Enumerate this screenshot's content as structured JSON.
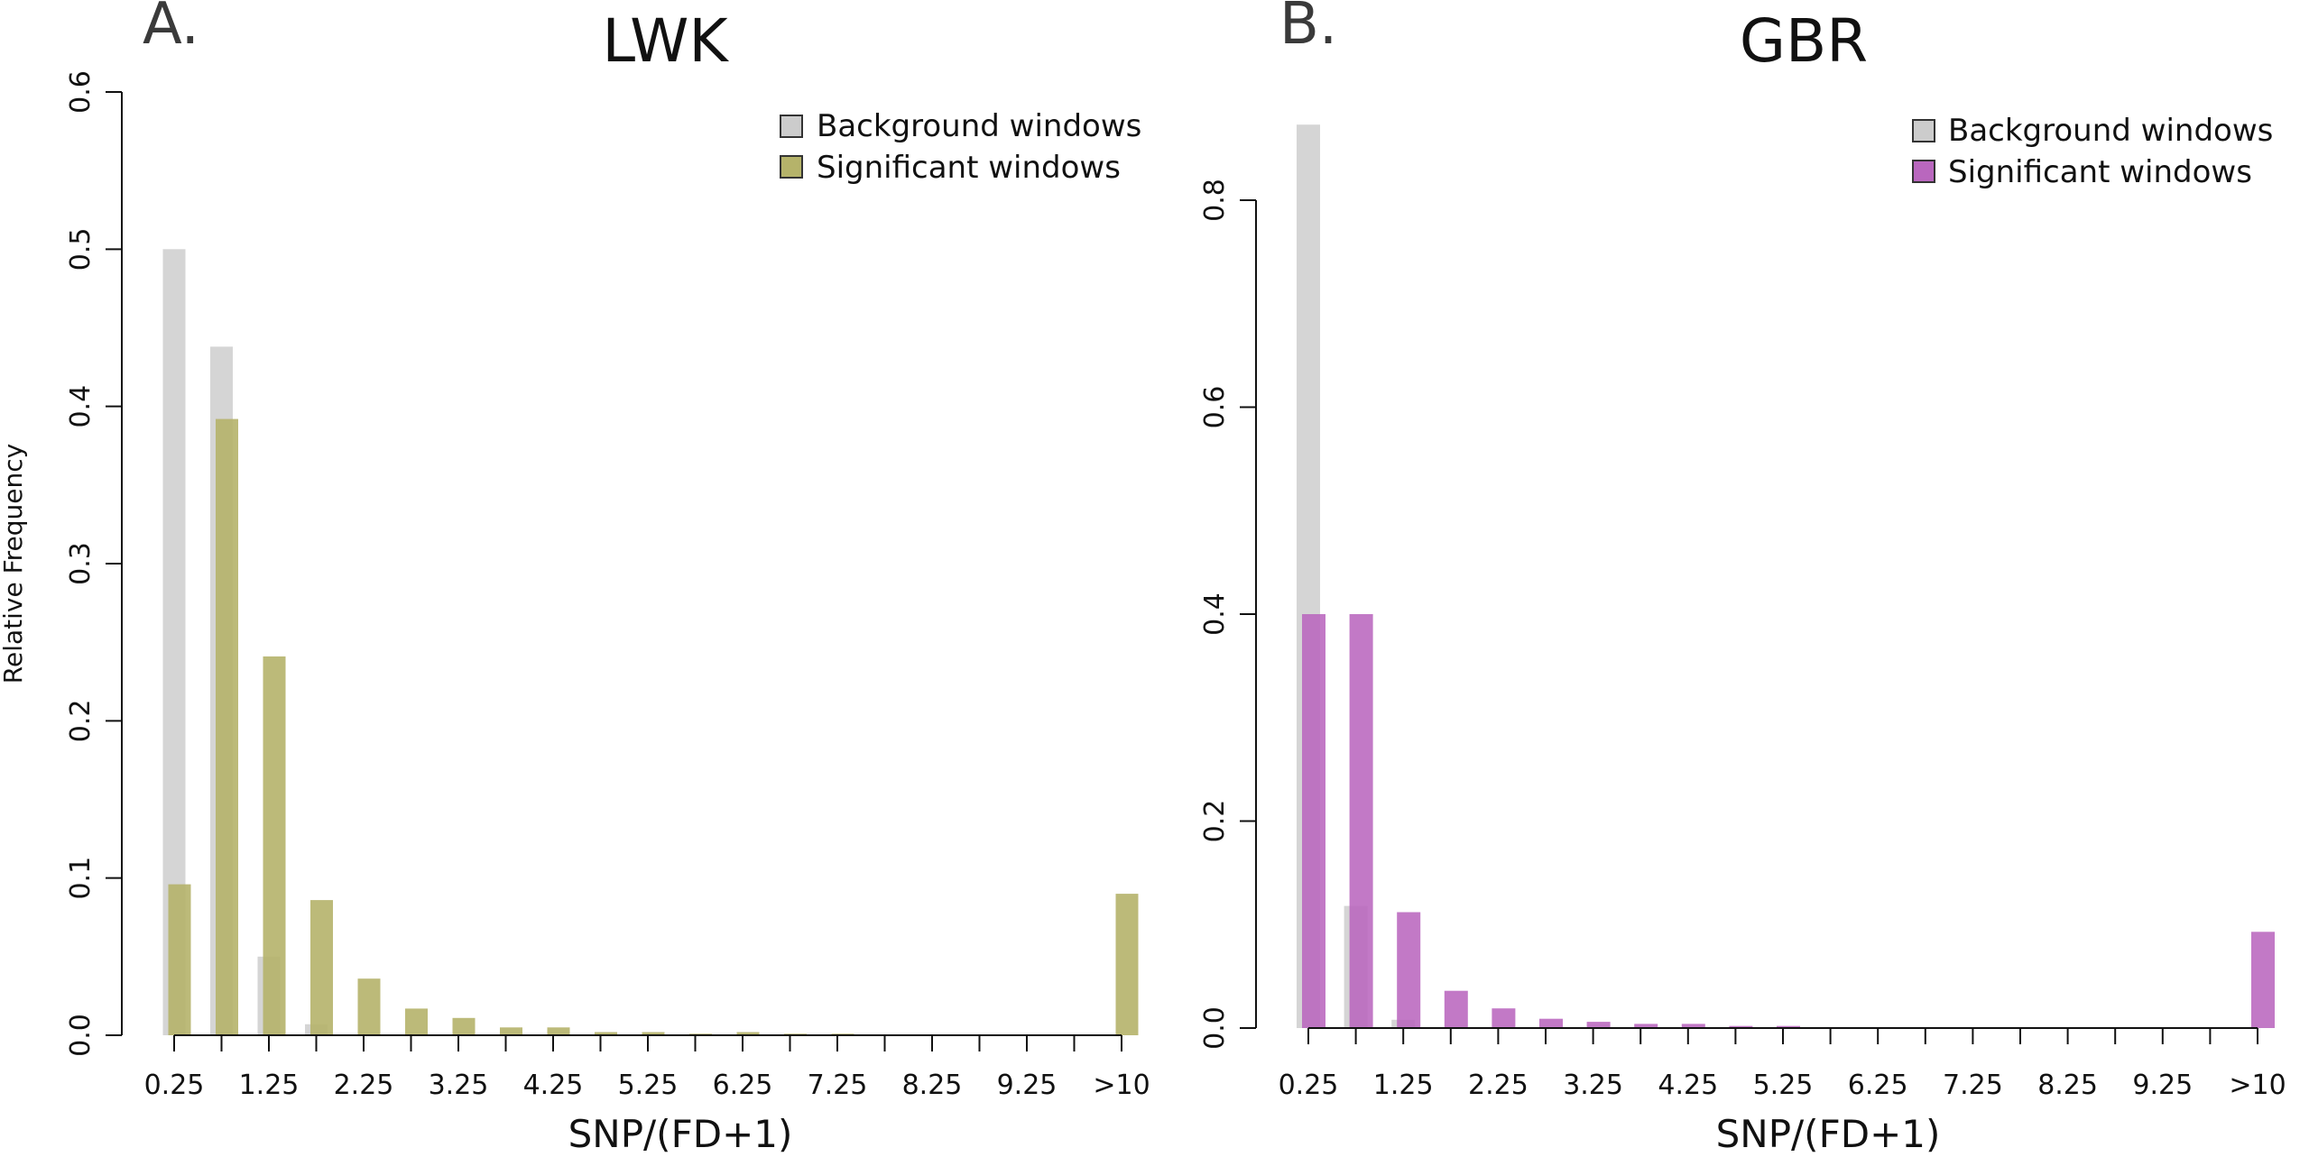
{
  "figure": {
    "shared_ylabel": "Relative Frequency"
  },
  "chart_data": [
    {
      "type": "bar",
      "panel_label": "A.",
      "title": "LWK",
      "xlabel": "SNP/(FD+1)",
      "ylabel": "Relative Frequency",
      "ylim": [
        0,
        0.6
      ],
      "yticks": [
        "0.0",
        "0.1",
        "0.2",
        "0.3",
        "0.4",
        "0.5",
        "0.6"
      ],
      "tick_labels": [
        "0.25",
        "1.25",
        "2.25",
        "3.25",
        "4.25",
        "5.25",
        "6.25",
        "7.25",
        "8.25",
        "9.25",
        ">10"
      ],
      "legend_position": "top-right",
      "series": [
        {
          "name": "Background windows",
          "color": "#cccccc",
          "values": [
            0.5,
            0.438,
            0.05,
            0.007,
            0,
            0,
            0,
            0,
            0,
            0,
            0,
            0,
            0,
            0,
            0,
            0,
            0,
            0,
            0,
            0,
            0
          ]
        },
        {
          "name": "Significant windows",
          "color": "#b5b36a",
          "values": [
            0.096,
            0.392,
            0.241,
            0.086,
            0.036,
            0.017,
            0.011,
            0.005,
            0.005,
            0.002,
            0.002,
            0.001,
            0.002,
            0.001,
            0.001,
            0,
            0,
            0,
            0,
            0,
            0.09
          ]
        }
      ]
    },
    {
      "type": "bar",
      "panel_label": "B.",
      "title": "GBR",
      "xlabel": "SNP/(FD+1)",
      "ylim": [
        0,
        0.9
      ],
      "yticks": [
        "0.0",
        "0.2",
        "0.4",
        "0.6",
        "0.8"
      ],
      "tick_labels": [
        "0.25",
        "1.25",
        "2.25",
        "3.25",
        "4.25",
        "5.25",
        "6.25",
        "7.25",
        "8.25",
        "9.25",
        ">10"
      ],
      "legend_position": "top-right",
      "series": [
        {
          "name": "Background windows",
          "color": "#cccccc",
          "values": [
            0.873,
            0.118,
            0.008,
            0,
            0,
            0,
            0,
            0,
            0,
            0,
            0,
            0,
            0,
            0,
            0,
            0,
            0,
            0,
            0,
            0,
            0
          ]
        },
        {
          "name": "Significant windows",
          "color": "#b967be",
          "values": [
            0.4,
            0.4,
            0.112,
            0.036,
            0.019,
            0.009,
            0.006,
            0.004,
            0.004,
            0.002,
            0.002,
            0.001,
            0.001,
            0.001,
            0,
            0,
            0,
            0,
            0,
            0,
            0.093
          ]
        }
      ]
    }
  ]
}
